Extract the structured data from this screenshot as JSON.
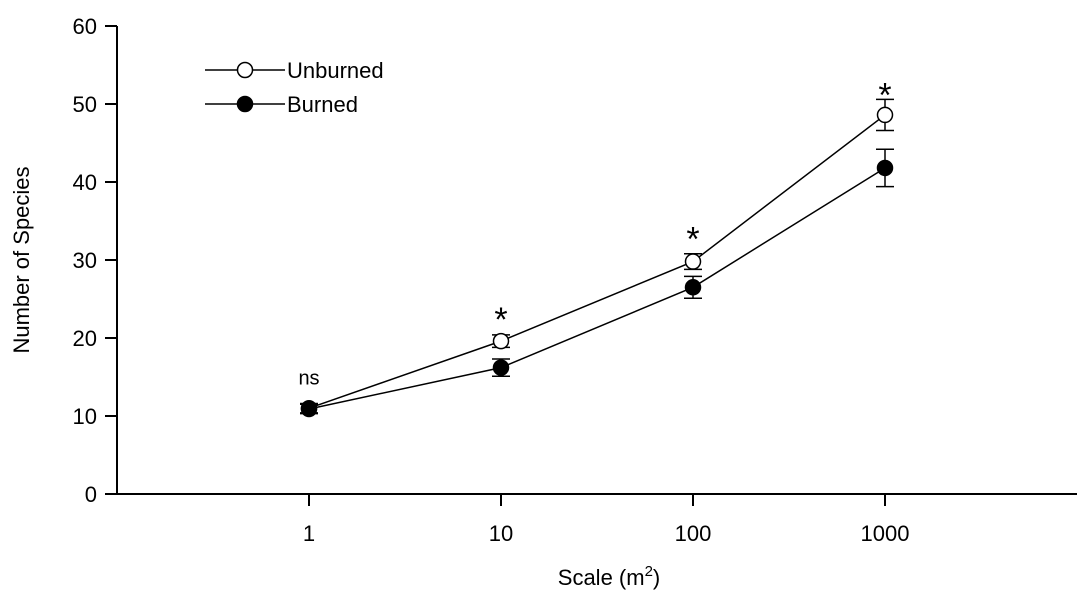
{
  "chart_data": {
    "type": "line",
    "x": [
      1,
      10,
      100,
      1000
    ],
    "x_tick_labels": [
      "1",
      "10",
      "100",
      "1000"
    ],
    "x_scale": "log",
    "xlim": [
      0.1,
      10000
    ],
    "ylim": [
      0,
      60
    ],
    "y_ticks": [
      0,
      10,
      20,
      30,
      40,
      50,
      60
    ],
    "y_tick_labels": [
      "0",
      "10",
      "20",
      "30",
      "40",
      "50",
      "60"
    ],
    "xlabel_prefix": "Scale (m",
    "xlabel_sup": "2",
    "xlabel_suffix": ")",
    "ylabel": "Number of Species",
    "grid": false,
    "legend_position": "top-left",
    "series": [
      {
        "name": "Unburned",
        "marker": "open-circle",
        "color": "#000000",
        "values": [
          11.0,
          19.6,
          29.8,
          48.6
        ],
        "errors": [
          0.6,
          0.8,
          1.0,
          2.0
        ]
      },
      {
        "name": "Burned",
        "marker": "filled-circle",
        "color": "#000000",
        "values": [
          10.9,
          16.2,
          26.5,
          41.8
        ],
        "errors": [
          0.6,
          1.1,
          1.4,
          2.4
        ]
      }
    ],
    "annotations": [
      {
        "x": 1,
        "text": "ns",
        "y": 14.8
      },
      {
        "x": 10,
        "text": "*",
        "y": 23.2
      },
      {
        "x": 100,
        "text": "*",
        "y": 33.5
      },
      {
        "x": 1000,
        "text": "*",
        "y": 52.0
      }
    ]
  }
}
